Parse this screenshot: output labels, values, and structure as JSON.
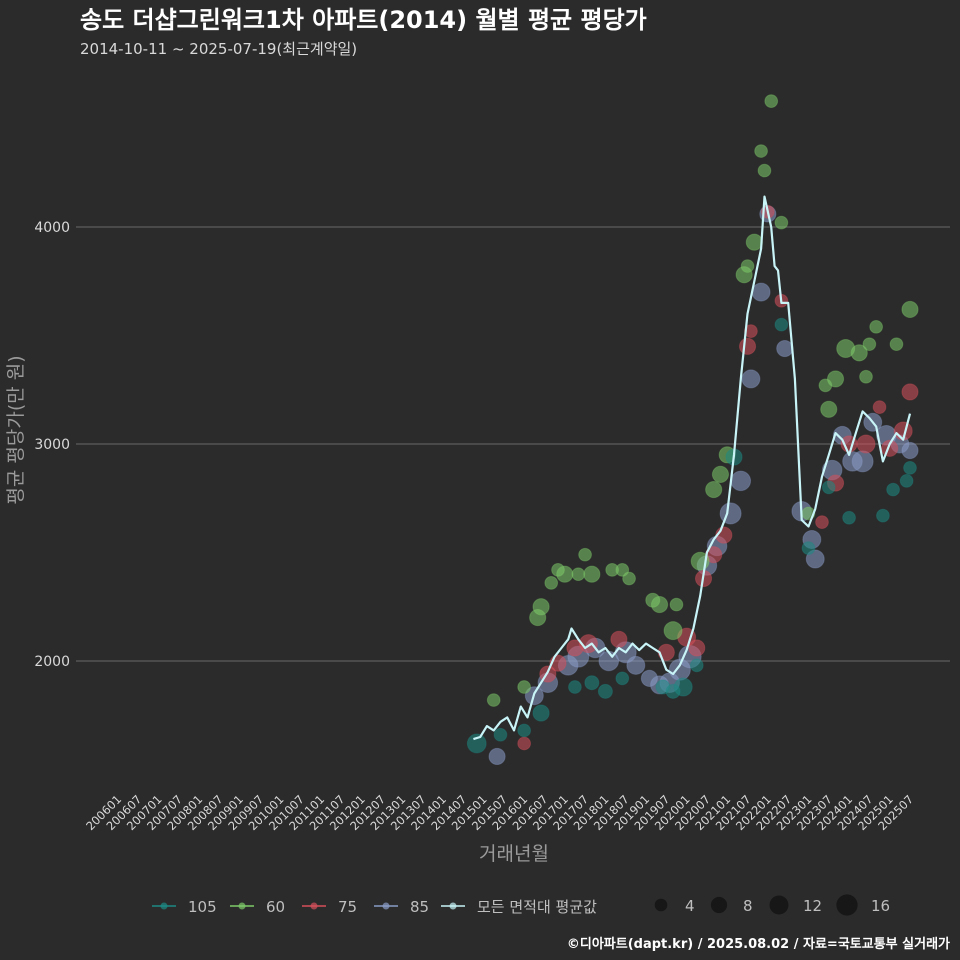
{
  "title": "송도 더샵그린워크1차 아파트(2014) 월별 평균 평당가",
  "subtitle": "2014-10-11 ~ 2025-07-19(최근계약일)",
  "caption": "©디아파트(dapt.kr) / 2025.08.02 / 자료=국토교통부 실거래가",
  "colors": {
    "background": "#2b2b2b",
    "grid": "#6a6a6a",
    "text": "#d9d9d9",
    "axis_title": "#9a9a9a",
    "avg_line": "#c8f4f8",
    "s105": "#1d8a84",
    "s60": "#7ecb6a",
    "s75": "#d6505b",
    "s85": "#8a9cc8"
  },
  "chart_data": {
    "type": "scatter",
    "xlabel": "거래년월",
    "ylabel": "평균 평당가(만 원)",
    "ylim": [
      1350,
      4700
    ],
    "yticks": [
      2000,
      3000,
      4000
    ],
    "x_tick_labels": [
      "200601",
      "200607",
      "200701",
      "200707",
      "200801",
      "200807",
      "200901",
      "200907",
      "201001",
      "201007",
      "201101",
      "201107",
      "201201",
      "201207",
      "201301",
      "201307",
      "201401",
      "201407",
      "201501",
      "201507",
      "201601",
      "201607",
      "201701",
      "201707",
      "201801",
      "201807",
      "201901",
      "201907",
      "202001",
      "202007",
      "202101",
      "202107",
      "202201",
      "202207",
      "202301",
      "202307",
      "202401",
      "202407",
      "202501",
      "202507"
    ],
    "legend_series": [
      {
        "key": "s105",
        "label": "105"
      },
      {
        "key": "s60",
        "label": "60"
      },
      {
        "key": "s75",
        "label": "75"
      },
      {
        "key": "s85",
        "label": "85"
      },
      {
        "key": "avg",
        "label": "모든 면적대 평균값"
      }
    ],
    "size_legend": [
      {
        "label": "4",
        "value": 4
      },
      {
        "label": "8",
        "value": 8
      },
      {
        "label": "12",
        "value": 12
      },
      {
        "label": "16",
        "value": 16
      }
    ],
    "avg_line": [
      [
        "2014-10",
        1640
      ],
      [
        "2014-12",
        1650
      ],
      [
        "2015-02",
        1700
      ],
      [
        "2015-04",
        1680
      ],
      [
        "2015-06",
        1720
      ],
      [
        "2015-08",
        1740
      ],
      [
        "2015-10",
        1680
      ],
      [
        "2015-12",
        1790
      ],
      [
        "2016-02",
        1740
      ],
      [
        "2016-04",
        1850
      ],
      [
        "2016-06",
        1900
      ],
      [
        "2016-08",
        1950
      ],
      [
        "2016-10",
        2020
      ],
      [
        "2016-12",
        2060
      ],
      [
        "2017-02",
        2100
      ],
      [
        "2017-03",
        2150
      ],
      [
        "2017-05",
        2100
      ],
      [
        "2017-07",
        2060
      ],
      [
        "2017-09",
        2080
      ],
      [
        "2017-11",
        2040
      ],
      [
        "2018-01",
        2060
      ],
      [
        "2018-03",
        2020
      ],
      [
        "2018-05",
        2060
      ],
      [
        "2018-07",
        2040
      ],
      [
        "2018-09",
        2080
      ],
      [
        "2018-11",
        2050
      ],
      [
        "2019-01",
        2080
      ],
      [
        "2019-03",
        2060
      ],
      [
        "2019-05",
        2040
      ],
      [
        "2019-07",
        1960
      ],
      [
        "2019-09",
        1940
      ],
      [
        "2019-11",
        1980
      ],
      [
        "2020-01",
        2050
      ],
      [
        "2020-03",
        2150
      ],
      [
        "2020-05",
        2300
      ],
      [
        "2020-07",
        2500
      ],
      [
        "2020-09",
        2560
      ],
      [
        "2020-11",
        2600
      ],
      [
        "2021-01",
        2680
      ],
      [
        "2021-03",
        2950
      ],
      [
        "2021-05",
        3300
      ],
      [
        "2021-07",
        3600
      ],
      [
        "2021-09",
        3750
      ],
      [
        "2021-11",
        3900
      ],
      [
        "2021-12",
        4140
      ],
      [
        "2022-02",
        4000
      ],
      [
        "2022-03",
        3820
      ],
      [
        "2022-04",
        3800
      ],
      [
        "2022-05",
        3650
      ],
      [
        "2022-07",
        3650
      ],
      [
        "2022-09",
        3300
      ],
      [
        "2022-11",
        2650
      ],
      [
        "2023-01",
        2620
      ],
      [
        "2023-03",
        2700
      ],
      [
        "2023-05",
        2850
      ],
      [
        "2023-07",
        2950
      ],
      [
        "2023-09",
        3050
      ],
      [
        "2023-11",
        3020
      ],
      [
        "2024-01",
        2950
      ],
      [
        "2024-03",
        3050
      ],
      [
        "2024-05",
        3150
      ],
      [
        "2024-07",
        3120
      ],
      [
        "2024-09",
        3080
      ],
      [
        "2024-11",
        2920
      ],
      [
        "2025-01",
        3000
      ],
      [
        "2025-03",
        3050
      ],
      [
        "2025-05",
        3020
      ],
      [
        "2025-07",
        3140
      ]
    ],
    "points": {
      "s105": [
        [
          "2014-11",
          1620,
          9
        ],
        [
          "2015-06",
          1660,
          3
        ],
        [
          "2016-01",
          1680,
          3
        ],
        [
          "2016-06",
          1760,
          6
        ],
        [
          "2017-04",
          1880,
          3
        ],
        [
          "2017-09",
          1900,
          4
        ],
        [
          "2018-01",
          1860,
          4
        ],
        [
          "2018-06",
          1920,
          3
        ],
        [
          "2019-06",
          1880,
          4
        ],
        [
          "2019-09",
          1860,
          4
        ],
        [
          "2019-12",
          1880,
          8
        ],
        [
          "2020-04",
          1980,
          3
        ],
        [
          "2021-03",
          2940,
          6
        ],
        [
          "2022-05",
          3550,
          3
        ],
        [
          "2023-01",
          2520,
          3
        ],
        [
          "2023-07",
          2800,
          3
        ],
        [
          "2024-01",
          2660,
          3
        ],
        [
          "2024-11",
          2670,
          3
        ],
        [
          "2025-02",
          2790,
          3
        ],
        [
          "2025-06",
          2830,
          3
        ],
        [
          "2025-07",
          2890,
          3
        ]
      ],
      "s60": [
        [
          "2015-04",
          1820,
          3
        ],
        [
          "2016-01",
          1880,
          3
        ],
        [
          "2016-05",
          2200,
          6
        ],
        [
          "2016-06",
          2250,
          6
        ],
        [
          "2016-09",
          2360,
          3
        ],
        [
          "2016-11",
          2420,
          3
        ],
        [
          "2017-01",
          2400,
          6
        ],
        [
          "2017-05",
          2400,
          3
        ],
        [
          "2017-07",
          2490,
          3
        ],
        [
          "2017-09",
          2400,
          6
        ],
        [
          "2018-03",
          2420,
          3
        ],
        [
          "2018-06",
          2420,
          3
        ],
        [
          "2018-08",
          2380,
          3
        ],
        [
          "2019-03",
          2280,
          4
        ],
        [
          "2019-05",
          2260,
          6
        ],
        [
          "2019-09",
          2140,
          8
        ],
        [
          "2019-10",
          2260,
          3
        ],
        [
          "2020-05",
          2460,
          8
        ],
        [
          "2020-09",
          2790,
          6
        ],
        [
          "2020-11",
          2860,
          6
        ],
        [
          "2021-01",
          2950,
          6
        ],
        [
          "2021-06",
          3780,
          6
        ],
        [
          "2021-07",
          3820,
          3
        ],
        [
          "2021-09",
          3930,
          6
        ],
        [
          "2021-11",
          4350,
          3
        ],
        [
          "2021-12",
          4260,
          3
        ],
        [
          "2022-02",
          4580,
          3
        ],
        [
          "2022-05",
          4020,
          3
        ],
        [
          "2023-01",
          2680,
          3
        ],
        [
          "2023-06",
          3270,
          3
        ],
        [
          "2023-09",
          3300,
          6
        ],
        [
          "2023-12",
          3440,
          8
        ],
        [
          "2023-07",
          3160,
          6
        ],
        [
          "2024-04",
          3420,
          6
        ],
        [
          "2024-06",
          3310,
          3
        ],
        [
          "2024-07",
          3460,
          3
        ],
        [
          "2024-09",
          3540,
          3
        ],
        [
          "2025-03",
          3460,
          3
        ],
        [
          "2025-07",
          3620,
          6
        ]
      ],
      "s75": [
        [
          "2016-01",
          1620,
          3
        ],
        [
          "2016-08",
          1940,
          6
        ],
        [
          "2016-11",
          1990,
          6
        ],
        [
          "2017-04",
          2060,
          6
        ],
        [
          "2017-08",
          2080,
          8
        ],
        [
          "2018-05",
          2100,
          6
        ],
        [
          "2019-07",
          2040,
          6
        ],
        [
          "2020-01",
          2110,
          8
        ],
        [
          "2020-04",
          2060,
          6
        ],
        [
          "2020-06",
          2380,
          6
        ],
        [
          "2020-09",
          2490,
          6
        ],
        [
          "2020-12",
          2580,
          6
        ],
        [
          "2021-07",
          3450,
          6
        ],
        [
          "2021-08",
          3520,
          3
        ],
        [
          "2022-01",
          4070,
          3
        ],
        [
          "2022-05",
          3660,
          3
        ],
        [
          "2023-05",
          2640,
          3
        ],
        [
          "2023-09",
          2820,
          6
        ],
        [
          "2024-01",
          3000,
          6
        ],
        [
          "2024-06",
          3000,
          8
        ],
        [
          "2024-10",
          3170,
          3
        ],
        [
          "2025-05",
          3060,
          8
        ],
        [
          "2025-07",
          3240,
          6
        ],
        [
          "2025-01",
          2980,
          6
        ]
      ],
      "s85": [
        [
          "2015-05",
          1560,
          6
        ],
        [
          "2016-04",
          1840,
          8
        ],
        [
          "2016-08",
          1900,
          10
        ],
        [
          "2017-02",
          1980,
          10
        ],
        [
          "2017-05",
          2020,
          12
        ],
        [
          "2017-10",
          2060,
          10
        ],
        [
          "2018-02",
          2000,
          10
        ],
        [
          "2018-07",
          2040,
          12
        ],
        [
          "2018-10",
          1980,
          8
        ],
        [
          "2019-02",
          1920,
          6
        ],
        [
          "2019-05",
          1890,
          8
        ],
        [
          "2019-08",
          1900,
          10
        ],
        [
          "2019-11",
          1960,
          12
        ],
        [
          "2020-02",
          2020,
          14
        ],
        [
          "2020-07",
          2440,
          10
        ],
        [
          "2020-10",
          2530,
          10
        ],
        [
          "2021-02",
          2680,
          12
        ],
        [
          "2021-05",
          2830,
          10
        ],
        [
          "2021-08",
          3300,
          8
        ],
        [
          "2021-11",
          3700,
          8
        ],
        [
          "2022-01",
          4060,
          6
        ],
        [
          "2022-06",
          3440,
          6
        ],
        [
          "2022-11",
          2690,
          10
        ],
        [
          "2023-02",
          2560,
          8
        ],
        [
          "2023-03",
          2470,
          8
        ],
        [
          "2023-08",
          2880,
          10
        ],
        [
          "2023-11",
          3040,
          8
        ],
        [
          "2024-02",
          2920,
          10
        ],
        [
          "2024-05",
          2920,
          12
        ],
        [
          "2024-08",
          3100,
          8
        ],
        [
          "2024-12",
          3040,
          10
        ],
        [
          "2025-04",
          3000,
          8
        ],
        [
          "2025-07",
          2970,
          6
        ]
      ]
    }
  }
}
